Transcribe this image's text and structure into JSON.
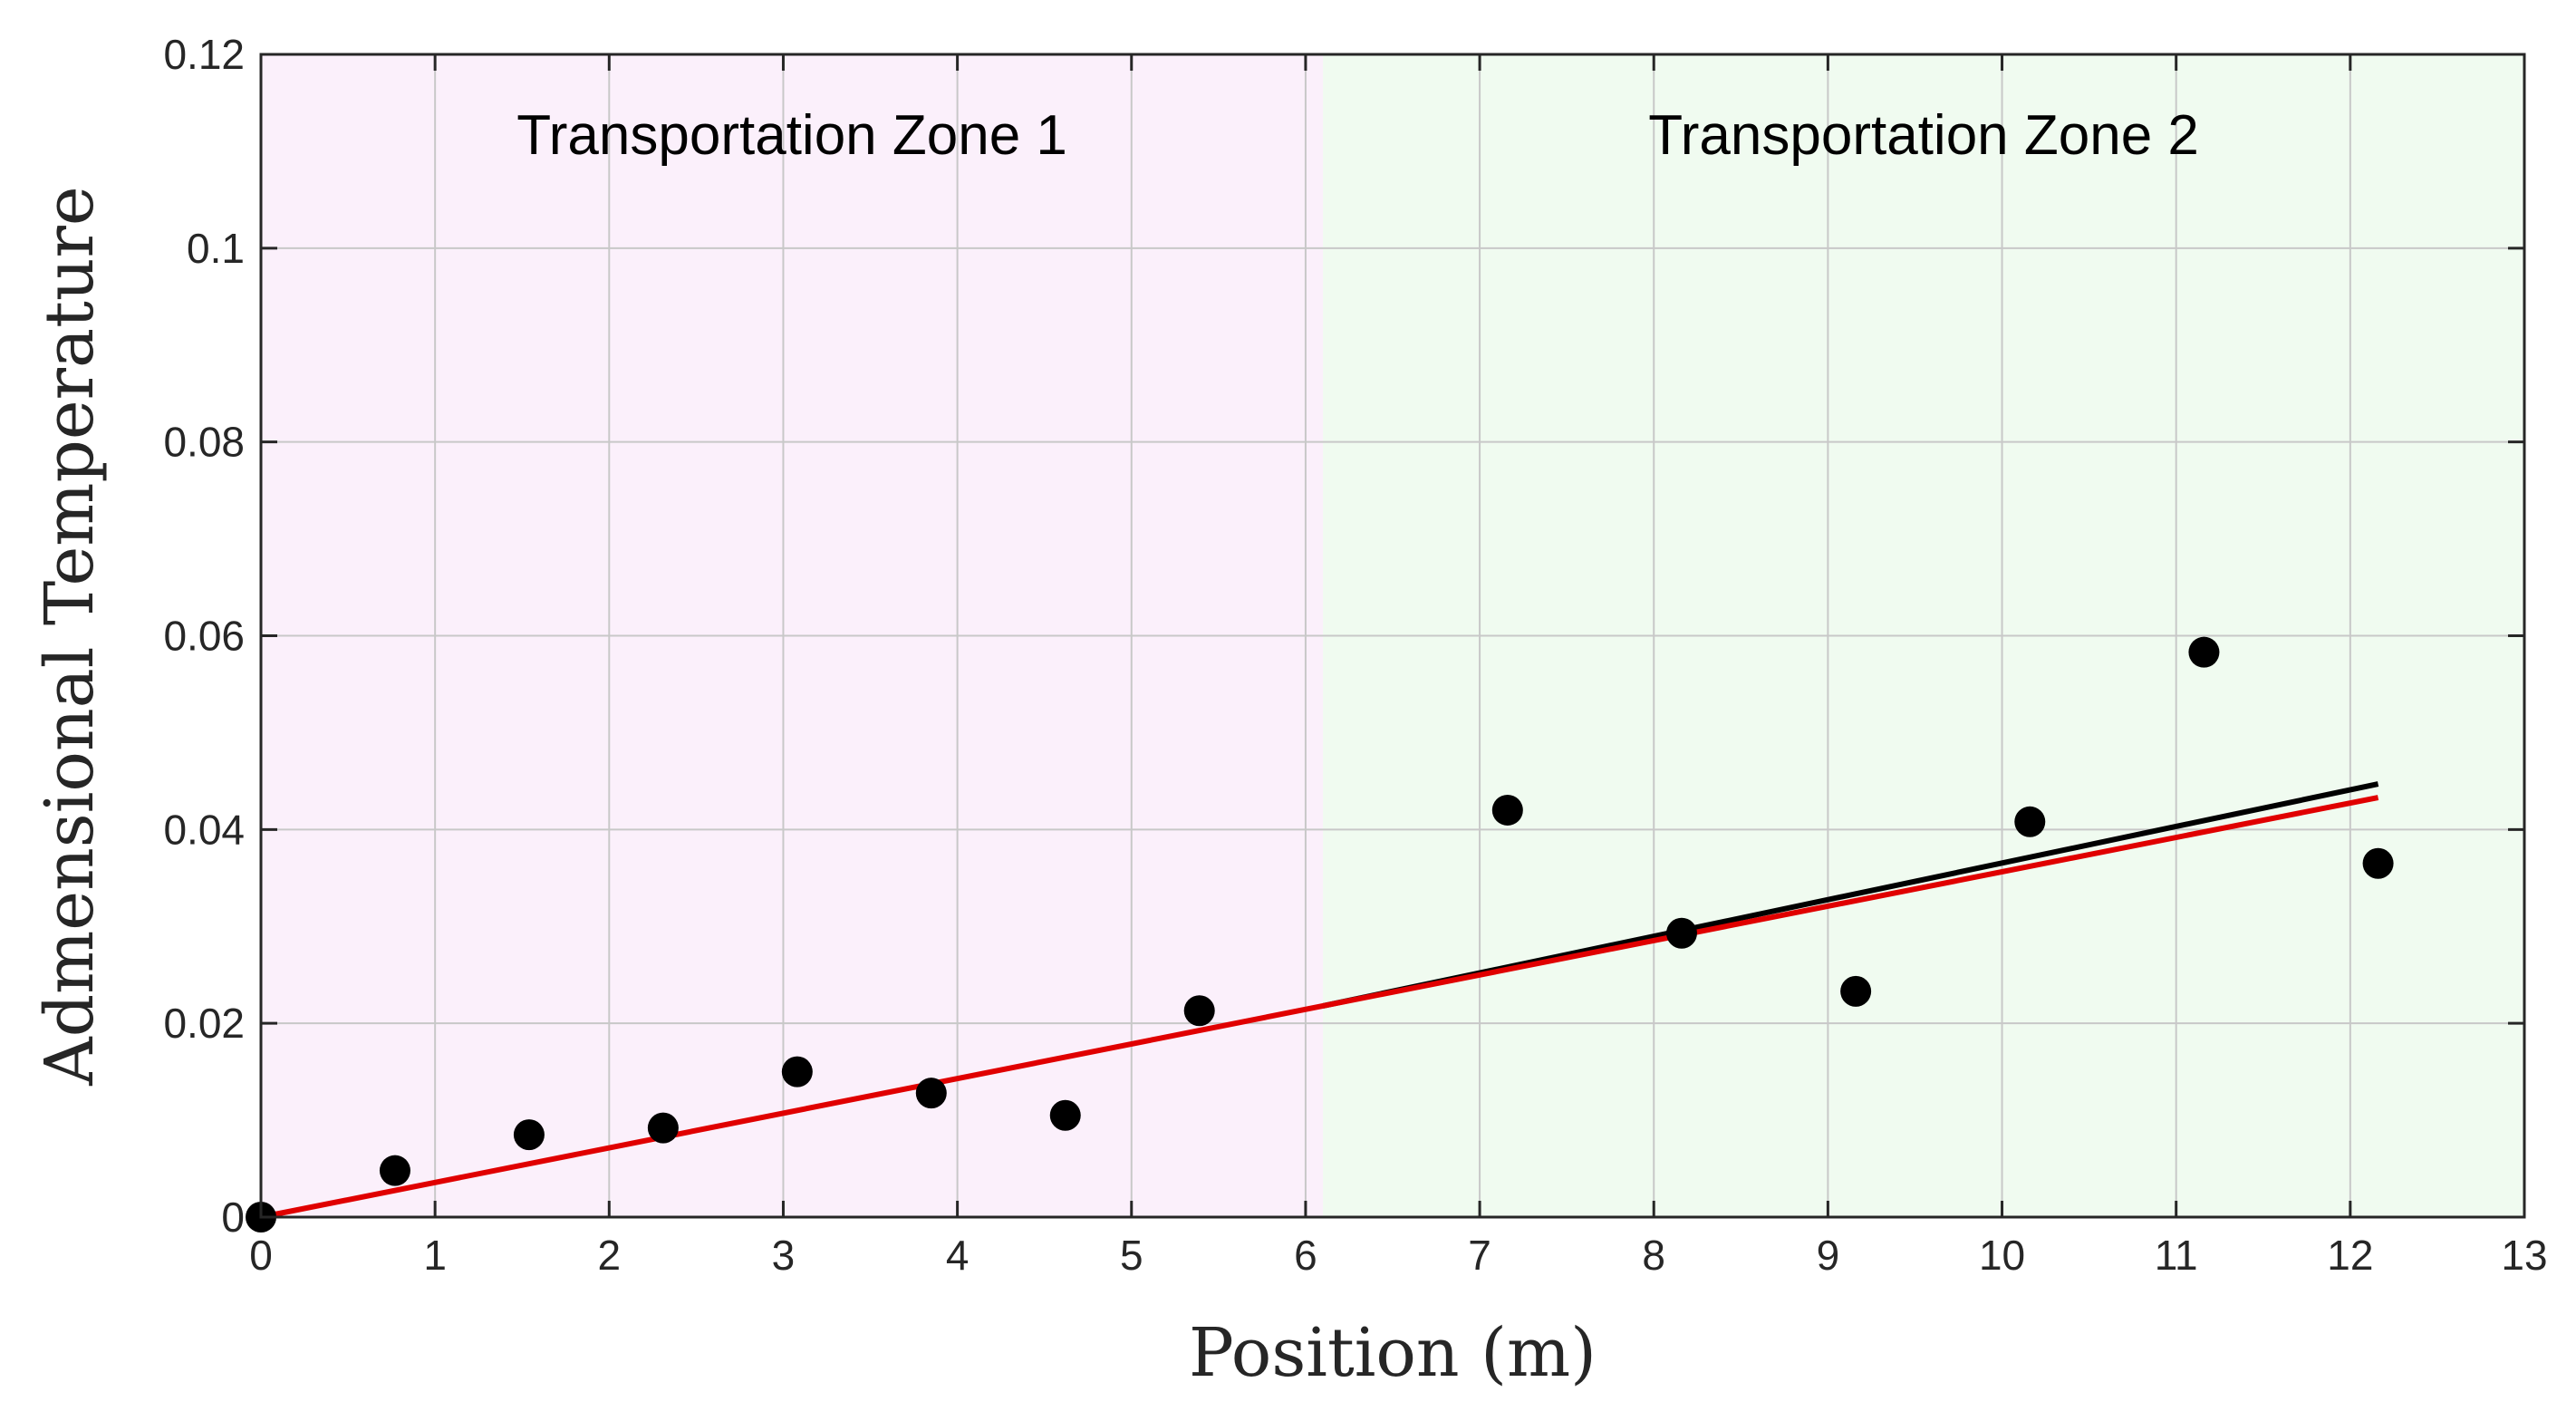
{
  "chart_data": {
    "type": "scatter",
    "xlabel": "Position (m)",
    "ylabel": "Admensional Temperature",
    "xlim": [
      0,
      13
    ],
    "ylim": [
      0,
      0.12
    ],
    "xticks": [
      0,
      1,
      2,
      3,
      4,
      5,
      6,
      7,
      8,
      9,
      10,
      11,
      12,
      13
    ],
    "yticks": [
      0,
      0.02,
      0.04,
      0.06,
      0.08,
      0.1,
      0.12
    ],
    "ytick_labels": [
      "0",
      "0.02",
      "0.04",
      "0.06",
      "0.08",
      "0.1",
      "0.12"
    ],
    "grid": true,
    "zones": [
      {
        "label": "Transportation Zone 1",
        "x_range": [
          0,
          6.1
        ],
        "color": "#fbf0fb"
      },
      {
        "label": "Transportation Zone 2",
        "x_range": [
          6.1,
          13
        ],
        "color": "#f0fbf0"
      }
    ],
    "series": [
      {
        "kind": "points",
        "color": "#000000",
        "x": [
          0,
          0.77,
          1.54,
          2.31,
          3.08,
          3.85,
          4.62,
          5.39,
          7.16,
          8.16,
          9.16,
          10.16,
          11.16,
          12.16
        ],
        "y": [
          0.0,
          0.0048,
          0.0085,
          0.0092,
          0.015,
          0.0128,
          0.0105,
          0.0213,
          0.042,
          0.0293,
          0.0233,
          0.0408,
          0.0583,
          0.0365
        ]
      },
      {
        "kind": "line",
        "color": "#000000",
        "x": [
          6.1,
          12.16
        ],
        "y": [
          0.0218,
          0.0447
        ]
      },
      {
        "kind": "line",
        "color": "#e00000",
        "x": [
          0,
          6.1,
          12.16
        ],
        "y": [
          0.0,
          0.0218,
          0.0433
        ]
      }
    ]
  }
}
